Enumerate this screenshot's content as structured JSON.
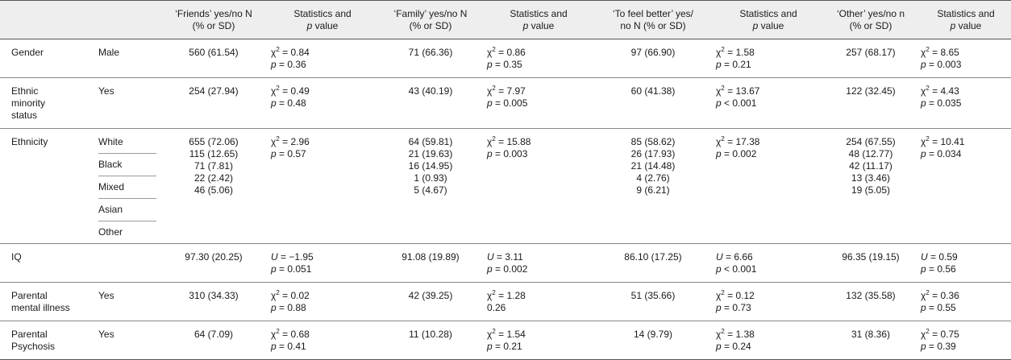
{
  "headers": {
    "friends": [
      "‘Friends’ yes/no N",
      "(% or SD)"
    ],
    "stat": [
      "Statistics and",
      "p",
      " value"
    ],
    "family": [
      "‘Family’ yes/no N",
      "(% or SD)"
    ],
    "better": [
      "‘To feel better’ yes/",
      "no N (% or SD)"
    ],
    "other": [
      "‘Other’ yes/no n",
      "(% or SD)"
    ]
  },
  "rows": {
    "gender": {
      "label": "Gender",
      "sub": "Male",
      "friends": "560 (61.54)",
      "s1a": "χ",
      "s1b": " = 0.84",
      "s1p": " = 0.36",
      "family": "71 (66.36)",
      "s2b": " = 0.86",
      "s2p": " = 0.35",
      "better": "97 (66.90)",
      "s3b": " = 1.58",
      "s3p": " = 0.21",
      "other": "257 (68.17)",
      "s4b": " = 8.65",
      "s4p": " = 0.003"
    },
    "ethmin": {
      "label1": "Ethnic",
      "label2": "minority",
      "label3": "status",
      "sub": "Yes",
      "friends": "254 (27.94)",
      "s1b": " = 0.49",
      "s1p": " = 0.48",
      "family": "43 (40.19)",
      "s2b": " = 7.97",
      "s2p": " = 0.005",
      "better": "60 (41.38)",
      "s3b": " = 13.67",
      "s3p": " < 0.001",
      "other": "122 (32.45)",
      "s4b": " = 4.43",
      "s4p": " = 0.035"
    },
    "ethnicity": {
      "label": "Ethnicity",
      "subs": [
        "White",
        "Black",
        "Mixed",
        "Asian",
        "Other"
      ],
      "friends": [
        "655 (72.06)",
        "115 (12.65)",
        "71 (7.81)",
        "22 (2.42)",
        "46 (5.06)"
      ],
      "s1b": " = 2.96",
      "s1p": " = 0.57",
      "family": [
        "64 (59.81)",
        "21 (19.63)",
        "16 (14.95)",
        "1 (0.93)",
        "5 (4.67)"
      ],
      "s2b": " = 15.88",
      "s2p": " = 0.003",
      "better": [
        "85 (58.62)",
        "26 (17.93)",
        "21 (14.48)",
        "4 (2.76)",
        "9 (6.21)"
      ],
      "s3b": " = 17.38",
      "s3p": " = 0.002",
      "other": [
        "254 (67.55)",
        "48 (12.77)",
        "42 (11.17)",
        "13 (3.46)",
        "19 (5.05)"
      ],
      "s4b": " = 10.41",
      "s4p": " = 0.034"
    },
    "iq": {
      "label": "IQ",
      "friends": "97.30 (20.25)",
      "u": "U",
      "s1b": " = −1.95",
      "s1p": " = 0.051",
      "family": "91.08 (19.89)",
      "s2b": " = 3.11",
      "s2p": " = 0.002",
      "better": "86.10 (17.25)",
      "s3b": " = 6.66",
      "s3p": " < 0.001",
      "other": "96.35 (19.15)",
      "s4b": " = 0.59",
      "s4p": " = 0.56"
    },
    "parmi": {
      "label1": "Parental",
      "label2": "mental illness",
      "sub": "Yes",
      "friends": "310 (34.33)",
      "s1b": " = 0.02",
      "s1p": " = 0.88",
      "family": "42 (39.25)",
      "s2b": " = 1.28",
      "s2p_plain": "0.26",
      "better": "51 (35.66)",
      "s3b": " = 0.12",
      "s3p": " = 0.73",
      "other": "132 (35.58)",
      "s4b": " = 0.36",
      "s4p": " = 0.55"
    },
    "parpsy": {
      "label1": "Parental",
      "label2": "Psychosis",
      "sub": "Yes",
      "friends": "64 (7.09)",
      "s1b": " = 0.68",
      "s1p": " = 0.41",
      "family": "11 (10.28)",
      "s2b": " = 1.54",
      "s2p": " = 0.21",
      "better": "14 (9.79)",
      "s3b": " = 1.38",
      "s3p": " = 0.24",
      "other": "31 (8.36)",
      "s4b": " = 0.75",
      "s4p": " = 0.39"
    }
  },
  "sym": {
    "chi": "χ",
    "two": "2",
    "p": "p",
    "u": "U"
  }
}
